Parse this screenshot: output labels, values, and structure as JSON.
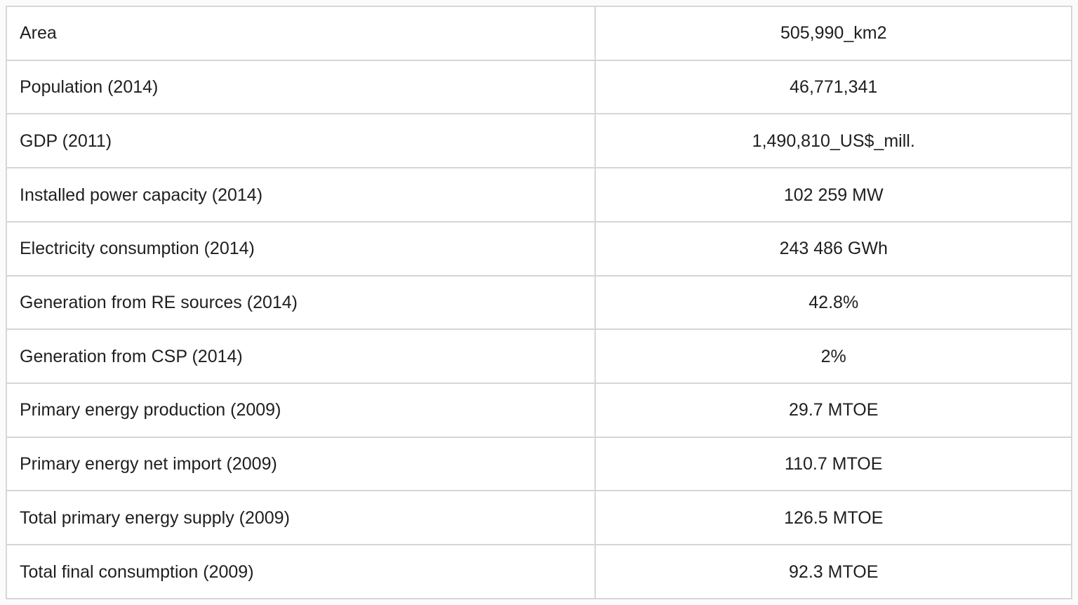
{
  "table": {
    "rows": [
      {
        "label": "Area",
        "value": "505,990_km2"
      },
      {
        "label": "Population (2014)",
        "value": "46,771,341"
      },
      {
        "label": "GDP (2011)",
        "value": "1,490,810_US$_mill."
      },
      {
        "label": "Installed power capacity (2014)",
        "value": "102 259 MW"
      },
      {
        "label": "Electricity consumption (2014)",
        "value": "243 486 GWh"
      },
      {
        "label": "Generation from RE sources (2014)",
        "value": "42.8%"
      },
      {
        "label": "Generation from CSP (2014)",
        "value": "2%"
      },
      {
        "label": "Primary energy production (2009)",
        "value": "29.7 MTOE"
      },
      {
        "label": "Primary energy net import (2009)",
        "value": "110.7 MTOE"
      },
      {
        "label": "Total primary energy supply (2009)",
        "value": "126.5 MTOE"
      },
      {
        "label": "Total final consumption (2009)",
        "value": "92.3 MTOE"
      }
    ],
    "colors": {
      "border": "#d6d6d6",
      "text": "#1f1f1f",
      "cell_background": "#ffffff",
      "page_background": "#fbfbfb"
    }
  }
}
